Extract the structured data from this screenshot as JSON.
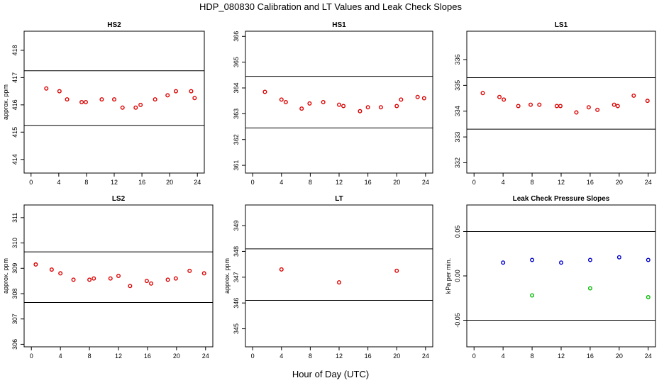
{
  "figure": {
    "title": "HDP_080830  Calibration and LT Values and Leak Check Slopes",
    "xlabel": "Hour of Day (UTC)"
  },
  "chart_data": [
    {
      "type": "scatter",
      "title": "HS2",
      "ylabel": "approx. ppm",
      "xlim": [
        -1,
        25
      ],
      "ylim": [
        413.5,
        418.7
      ],
      "xticks": [
        0,
        4,
        8,
        12,
        16,
        20,
        24
      ],
      "xtick_labels": [
        "0",
        "4",
        "8",
        "12",
        "16",
        "20",
        "24"
      ],
      "yticks": [
        414,
        415,
        416,
        417,
        418
      ],
      "ytick_labels": [
        "414",
        "415",
        "416",
        "417",
        "418"
      ],
      "hlines": [
        417.25,
        415.25
      ],
      "series": [
        {
          "color": "#dd0000",
          "x": [
            2.2,
            4.1,
            5.2,
            7.3,
            7.9,
            10.2,
            12.0,
            13.2,
            15.1,
            15.8,
            17.9,
            19.7,
            20.9,
            23.1,
            23.6
          ],
          "y": [
            416.6,
            416.5,
            416.2,
            416.1,
            416.1,
            416.2,
            416.2,
            415.9,
            415.9,
            416.0,
            416.2,
            416.35,
            416.5,
            416.5,
            416.25
          ]
        }
      ]
    },
    {
      "type": "scatter",
      "title": "HS1",
      "ylabel": "",
      "xlim": [
        -1,
        25
      ],
      "ylim": [
        360.7,
        366.2
      ],
      "xticks": [
        0,
        4,
        8,
        12,
        16,
        20,
        24
      ],
      "xtick_labels": [
        "0",
        "4",
        "8",
        "12",
        "16",
        "20",
        "24"
      ],
      "yticks": [
        361,
        362,
        363,
        364,
        365,
        366
      ],
      "ytick_labels": [
        "361",
        "362",
        "363",
        "364",
        "365",
        "366"
      ],
      "hlines": [
        364.45,
        362.45
      ],
      "series": [
        {
          "color": "#dd0000",
          "x": [
            1.7,
            4.0,
            4.6,
            6.8,
            7.9,
            9.8,
            12.0,
            12.6,
            14.9,
            16.0,
            17.8,
            20.0,
            20.6,
            22.9,
            23.8
          ],
          "y": [
            363.85,
            363.55,
            363.45,
            363.2,
            363.4,
            363.45,
            363.35,
            363.3,
            363.1,
            363.25,
            363.25,
            363.3,
            363.55,
            363.65,
            363.6
          ]
        }
      ]
    },
    {
      "type": "scatter",
      "title": "LS1",
      "ylabel": "",
      "xlim": [
        -1,
        25
      ],
      "ylim": [
        331.6,
        337.1
      ],
      "xticks": [
        0,
        4,
        8,
        12,
        16,
        20,
        24
      ],
      "xtick_labels": [
        "0",
        "4",
        "8",
        "12",
        "16",
        "20",
        "24"
      ],
      "yticks": [
        332,
        333,
        334,
        335,
        336
      ],
      "ytick_labels": [
        "332",
        "333",
        "334",
        "335",
        "336"
      ],
      "hlines": [
        335.3,
        333.3
      ],
      "series": [
        {
          "color": "#dd0000",
          "x": [
            1.2,
            3.5,
            4.1,
            6.1,
            7.8,
            9.0,
            11.4,
            11.9,
            14.1,
            15.8,
            17.0,
            19.3,
            19.8,
            22.0,
            23.9
          ],
          "y": [
            334.7,
            334.55,
            334.45,
            334.2,
            334.25,
            334.25,
            334.2,
            334.2,
            333.95,
            334.15,
            334.05,
            334.25,
            334.2,
            334.6,
            334.4
          ]
        }
      ]
    },
    {
      "type": "scatter",
      "title": "LS2",
      "ylabel": "approx. ppm",
      "xlim": [
        -1,
        25
      ],
      "ylim": [
        305.9,
        311.5
      ],
      "xticks": [
        0,
        4,
        8,
        12,
        16,
        20,
        24
      ],
      "xtick_labels": [
        "0",
        "4",
        "8",
        "12",
        "16",
        "20",
        "24"
      ],
      "yticks": [
        306,
        307,
        308,
        309,
        310,
        311
      ],
      "ytick_labels": [
        "306",
        "307",
        "308",
        "309",
        "310",
        "311"
      ],
      "hlines": [
        309.65,
        307.65
      ],
      "series": [
        {
          "color": "#dd0000",
          "x": [
            0.6,
            2.8,
            4.0,
            5.8,
            8.0,
            8.6,
            10.9,
            12.0,
            13.6,
            15.9,
            16.5,
            18.8,
            19.9,
            21.8,
            23.8
          ],
          "y": [
            309.15,
            308.95,
            308.8,
            308.55,
            308.55,
            308.6,
            308.6,
            308.7,
            308.3,
            308.5,
            308.4,
            308.55,
            308.6,
            308.9,
            308.8
          ]
        }
      ]
    },
    {
      "type": "scatter",
      "title": "LT",
      "ylabel": "approx. ppm",
      "xlim": [
        -1,
        25
      ],
      "ylim": [
        344.3,
        349.8
      ],
      "xticks": [
        0,
        4,
        8,
        12,
        16,
        20,
        24
      ],
      "xtick_labels": [
        "0",
        "4",
        "8",
        "12",
        "16",
        "20",
        "24"
      ],
      "yticks": [
        345,
        346,
        347,
        348,
        349
      ],
      "ytick_labels": [
        "345",
        "346",
        "347",
        "348",
        "349"
      ],
      "hlines": [
        348.1,
        346.1
      ],
      "series": [
        {
          "color": "#dd0000",
          "x": [
            4.0,
            12.0,
            20.0
          ],
          "y": [
            347.3,
            346.8,
            347.25
          ]
        }
      ]
    },
    {
      "type": "scatter",
      "title": "Leak Check Pressure Slopes",
      "ylabel": "kPa per min.",
      "xlim": [
        -1,
        25
      ],
      "ylim": [
        -0.08,
        0.08
      ],
      "xticks": [
        0,
        4,
        8,
        12,
        16,
        20,
        24
      ],
      "xtick_labels": [
        "0",
        "4",
        "8",
        "12",
        "16",
        "20",
        "24"
      ],
      "yticks": [
        -0.05,
        0.0,
        0.05
      ],
      "ytick_labels": [
        "-0.05",
        "0.00",
        "0.05"
      ],
      "hlines": [
        0.05,
        -0.05
      ],
      "series": [
        {
          "color": "#0000cc",
          "x": [
            4.0,
            8.0,
            12.0,
            16.0,
            20.0,
            24.0
          ],
          "y": [
            0.015,
            0.018,
            0.015,
            0.018,
            0.021,
            0.018
          ]
        },
        {
          "color": "#00bb00",
          "x": [
            8.0,
            16.0,
            24.0
          ],
          "y": [
            -0.022,
            -0.014,
            -0.024
          ]
        }
      ]
    }
  ]
}
